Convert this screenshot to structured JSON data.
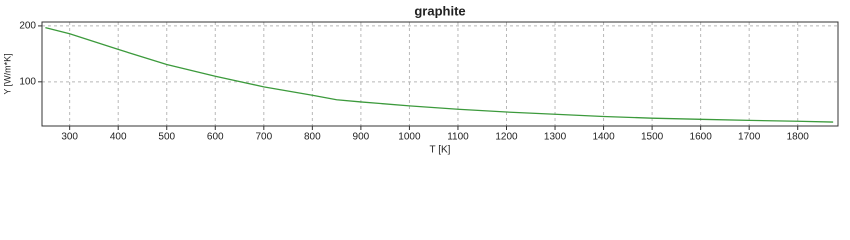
{
  "chart_data": {
    "type": "line",
    "title": "graphite",
    "x_label": "T [K]",
    "y_label": "Y [W/m*K]",
    "x": [
      250,
      300,
      400,
      500,
      600,
      700,
      800,
      850,
      900,
      1000,
      1100,
      1200,
      1300,
      1400,
      1500,
      1600,
      1700,
      1800,
      1873
    ],
    "series": [
      {
        "name": "graphite",
        "color": "#3c9a3c",
        "values": [
          197,
          186,
          158,
          131,
          110,
          91,
          76,
          68,
          64,
          57,
          51,
          46,
          42,
          38,
          35,
          33,
          31,
          29.5,
          28
        ]
      }
    ],
    "xlim": [
      243,
      1883
    ],
    "xticks": [
      300,
      400,
      500,
      600,
      700,
      800,
      900,
      1000,
      1100,
      1200,
      1300,
      1400,
      1500,
      1600,
      1700,
      1800
    ],
    "ylim": [
      21,
      207
    ],
    "yticks": [
      100,
      200
    ],
    "grid": true
  }
}
